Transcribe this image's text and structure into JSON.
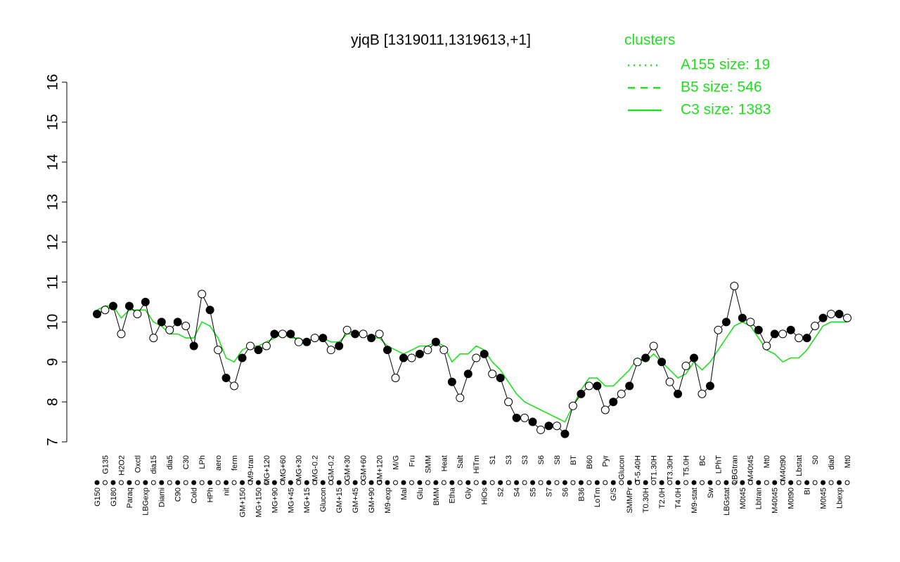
{
  "chart_data": {
    "type": "line",
    "title": "yjqB [1319011,1319613,+1]",
    "legend_title": "clusters",
    "legend_color": "#22dd22",
    "categories": [
      "G150",
      "G135",
      "G180",
      "H2O2",
      "Paraq",
      "Oxctl",
      "LBGexp",
      "dia15",
      "Diami",
      "dia5",
      "C90",
      "C30",
      "Cold",
      "LPh",
      "HPh",
      "aero",
      "nit",
      "ferm",
      "GM+150",
      "M9-tran",
      "MG+150",
      "MG+120",
      "MG+90",
      "MG+60",
      "MG+45",
      "MG+30",
      "MG+15",
      "MG-0.2",
      "Glucon",
      "GM-0.2",
      "GM+15",
      "GM+30",
      "GM+45",
      "GM+60",
      "GM+90",
      "GM+120",
      "M9-exp",
      "M/G",
      "Mal",
      "Fru",
      "Glu",
      "SMM",
      "BMM",
      "Heat",
      "Etha",
      "Salt",
      "Gly",
      "HiTm",
      "HiOs",
      "S1",
      "S2",
      "S3",
      "S4",
      "S3",
      "S5",
      "S6",
      "S7",
      "S8",
      "S6",
      "BT",
      "B36",
      "B60",
      "LoTm",
      "Pyr",
      "G/S",
      "Glucon",
      "SMMPr",
      "T-5.40H",
      "T0.30H",
      "T1.30H",
      "T2.0H",
      "T3.30H",
      "T4.0H",
      "T5.0H",
      "M9-stat",
      "BC",
      "Sw",
      "LPhT",
      "LBGstat",
      "LBGtran",
      "M0t45",
      "M40t45",
      "Lbtran",
      "Mt0",
      "M40t45",
      "M40t90",
      "M0t90",
      "Lbstat",
      "BI",
      "S0",
      "M0t45",
      "dia0",
      "Lbexp",
      "Mt0"
    ],
    "values": [
      10.2,
      10.3,
      10.4,
      9.7,
      10.4,
      10.2,
      10.5,
      9.6,
      10.0,
      9.8,
      10.0,
      9.9,
      9.4,
      10.7,
      10.3,
      9.3,
      8.6,
      8.4,
      9.1,
      9.4,
      9.3,
      9.4,
      9.7,
      9.7,
      9.7,
      9.5,
      9.5,
      9.6,
      9.6,
      9.3,
      9.4,
      9.8,
      9.7,
      9.7,
      9.6,
      9.7,
      9.3,
      8.6,
      9.1,
      9.1,
      9.2,
      9.3,
      9.5,
      9.3,
      8.5,
      8.1,
      8.7,
      9.1,
      9.2,
      8.7,
      8.6,
      8.0,
      7.6,
      7.6,
      7.5,
      7.3,
      7.4,
      7.4,
      7.2,
      7.9,
      8.2,
      8.4,
      8.4,
      7.8,
      8.0,
      8.2,
      8.4,
      9.0,
      9.1,
      9.4,
      9.0,
      8.5,
      8.2,
      8.9,
      9.1,
      8.2,
      8.4,
      9.8,
      10.0,
      10.9,
      10.1,
      10.0,
      9.8,
      9.4,
      9.7,
      9.7,
      9.8,
      9.6,
      9.6,
      9.9,
      10.1,
      10.2,
      10.2,
      10.1
    ],
    "series": [
      {
        "name": "A155 size: 19",
        "color": "#22dd22",
        "dash": "dotted"
      },
      {
        "name": "B5 size: 546",
        "color": "#22dd22",
        "dash": "dashed"
      },
      {
        "name": "C3 size: 1383",
        "color": "#22dd22",
        "dash": "solid",
        "values": [
          10.3,
          10.4,
          10.4,
          10.1,
          10.3,
          10.3,
          10.3,
          10.0,
          9.9,
          9.7,
          9.7,
          9.6,
          9.6,
          10.0,
          9.9,
          9.6,
          9.1,
          9.0,
          9.3,
          9.4,
          9.4,
          9.5,
          9.6,
          9.7,
          9.6,
          9.6,
          9.5,
          9.6,
          9.6,
          9.5,
          9.5,
          9.7,
          9.7,
          9.7,
          9.6,
          9.6,
          9.4,
          9.3,
          9.2,
          9.3,
          9.4,
          9.4,
          9.5,
          9.4,
          9.0,
          9.2,
          9.2,
          9.4,
          9.3,
          9.0,
          8.8,
          8.5,
          8.2,
          8.0,
          7.9,
          7.8,
          7.7,
          7.6,
          7.5,
          7.9,
          8.3,
          8.6,
          8.6,
          8.4,
          8.4,
          8.6,
          8.8,
          9.1,
          9.0,
          9.2,
          9.0,
          8.8,
          8.6,
          8.7,
          9.0,
          8.8,
          9.0,
          9.3,
          9.6,
          9.9,
          10.0,
          9.9,
          9.6,
          9.3,
          9.2,
          9.0,
          9.1,
          9.1,
          9.3,
          9.6,
          9.9,
          10.0,
          10.0,
          10.0
        ]
      }
    ],
    "ylim": [
      7,
      16
    ],
    "yticks": [
      7,
      8,
      9,
      10,
      11,
      12,
      13,
      14,
      15,
      16
    ]
  }
}
